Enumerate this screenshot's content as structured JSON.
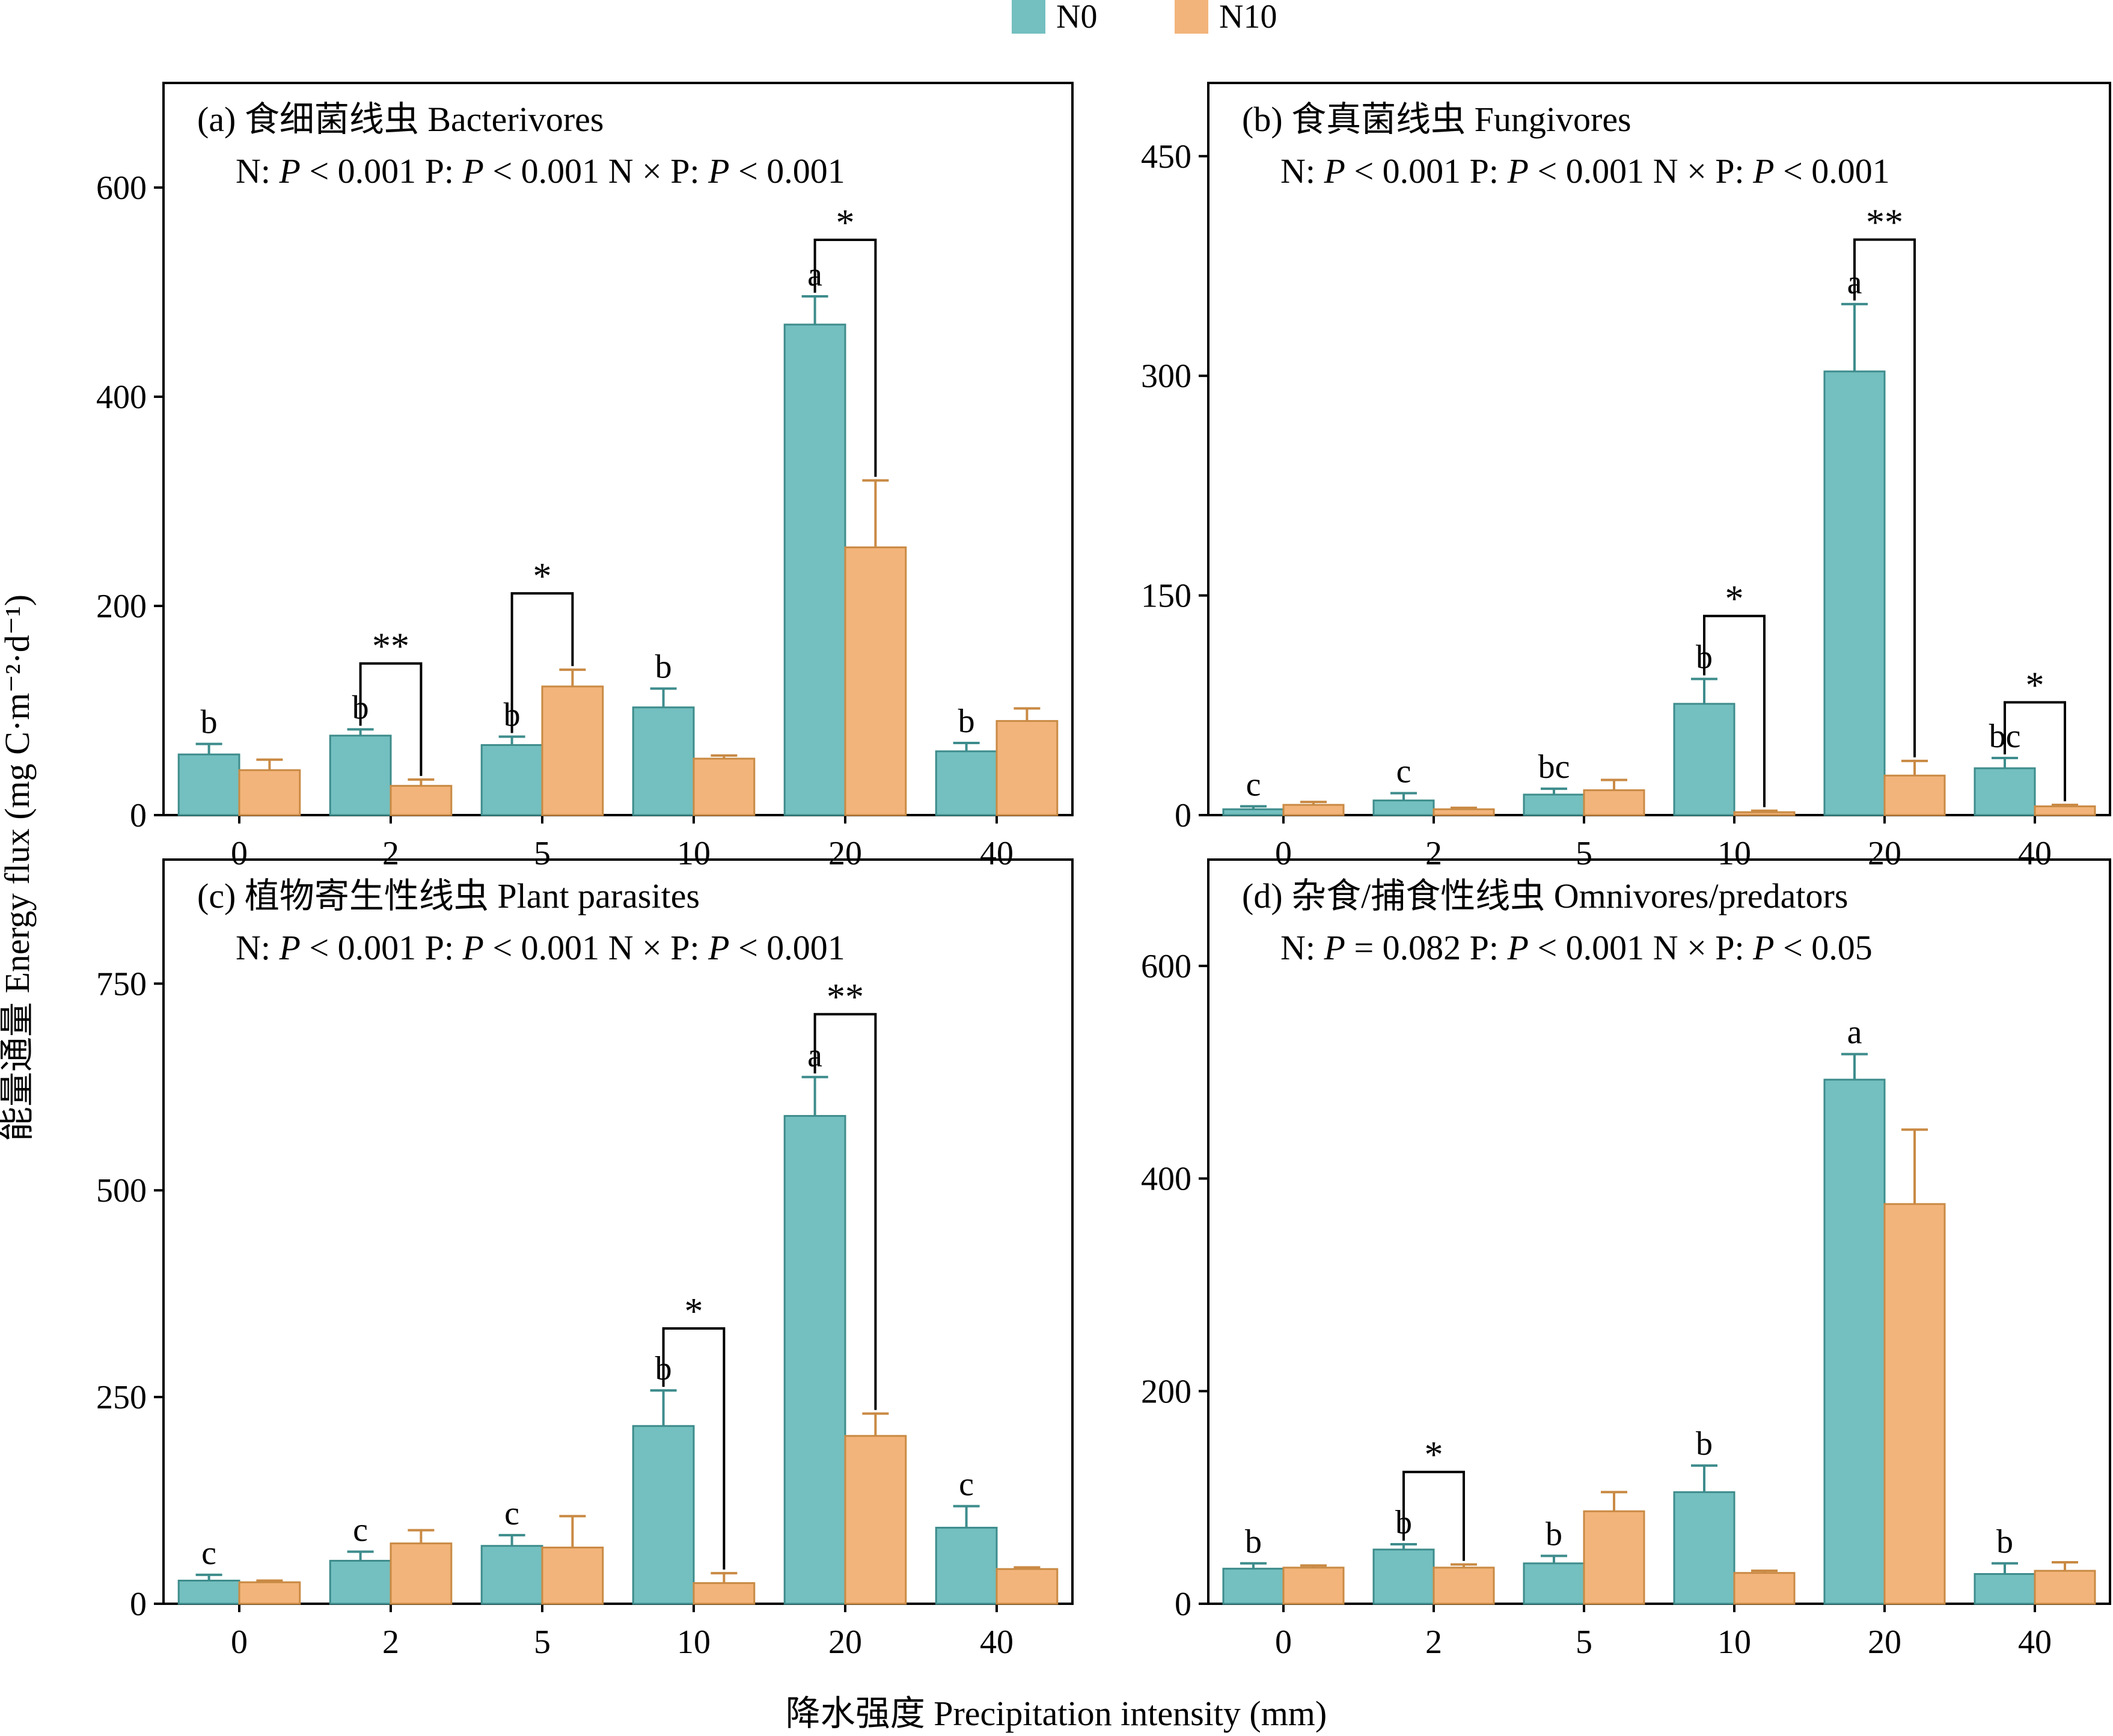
{
  "colors": {
    "N0": "#74BFBF",
    "N10": "#F2B47A",
    "N0_edge": "#3E8C8C",
    "N10_edge": "#C98A44"
  },
  "legend": {
    "N0": "N0",
    "N10": "N10"
  },
  "y_axis_label": "能量通量 Energy flux (mg C·m⁻²·d⁻¹)",
  "x_axis_label": "降水强度 Precipitation intensity (mm)",
  "chart_data": [
    {
      "type": "bar",
      "title": "(a) 食细菌线虫 Bacterivores",
      "stats": [
        {
          "pre": "N: ",
          "p": "P",
          "post": " < 0.001"
        },
        {
          "pre": "P: ",
          "p": "P",
          "post": " < 0.001"
        },
        {
          "pre": "N × P: ",
          "p": "P",
          "post": " < 0.001"
        }
      ],
      "categories": [
        "0",
        "2",
        "5",
        "10",
        "20",
        "40"
      ],
      "ylim": [
        0,
        700
      ],
      "yticks": [
        0,
        200,
        400,
        600
      ],
      "series": [
        {
          "name": "N0",
          "values": [
            58,
            76,
            67,
            103,
            469,
            61
          ],
          "errors": [
            10,
            6,
            8,
            18,
            27,
            8
          ]
        },
        {
          "name": "N10",
          "values": [
            43,
            28,
            123,
            54,
            256,
            90
          ],
          "errors": [
            10,
            6,
            16,
            3,
            64,
            12
          ]
        }
      ],
      "letters": [
        {
          "cat": 0,
          "series": 0,
          "text": "b"
        },
        {
          "cat": 1,
          "series": 0,
          "text": "b"
        },
        {
          "cat": 2,
          "series": 0,
          "text": "b"
        },
        {
          "cat": 3,
          "series": 0,
          "text": "b"
        },
        {
          "cat": 4,
          "series": 0,
          "text": "a"
        },
        {
          "cat": 5,
          "series": 0,
          "text": "b"
        }
      ],
      "sig": [
        {
          "cat": 1,
          "text": "**",
          "top": 145
        },
        {
          "cat": 2,
          "text": "*",
          "top": 212
        },
        {
          "cat": 4,
          "text": "*",
          "top": 550
        }
      ]
    },
    {
      "type": "bar",
      "title": "(b) 食真菌线虫 Fungivores",
      "stats": [
        {
          "pre": "N: ",
          "p": "P",
          "post": " < 0.001"
        },
        {
          "pre": "P: ",
          "p": "P",
          "post": " < 0.001"
        },
        {
          "pre": "N × P: ",
          "p": "P",
          "post": " < 0.001"
        }
      ],
      "categories": [
        "0",
        "2",
        "5",
        "10",
        "20",
        "40"
      ],
      "ylim": [
        0,
        500
      ],
      "yticks": [
        0,
        150,
        300,
        450
      ],
      "series": [
        {
          "name": "N0",
          "values": [
            4,
            10,
            14,
            76,
            303,
            32
          ],
          "errors": [
            2,
            5,
            4,
            17,
            46,
            7
          ]
        },
        {
          "name": "N10",
          "values": [
            7,
            4,
            17,
            2,
            27,
            6
          ],
          "errors": [
            2,
            1,
            7,
            1,
            10,
            1
          ]
        }
      ],
      "letters": [
        {
          "cat": 0,
          "series": 0,
          "text": "c"
        },
        {
          "cat": 1,
          "series": 0,
          "text": "c"
        },
        {
          "cat": 2,
          "series": 0,
          "text": "bc"
        },
        {
          "cat": 3,
          "series": 0,
          "text": "b"
        },
        {
          "cat": 4,
          "series": 0,
          "text": "a"
        },
        {
          "cat": 5,
          "series": 0,
          "text": "bc"
        }
      ],
      "sig": [
        {
          "cat": 3,
          "text": "*",
          "top": 136
        },
        {
          "cat": 4,
          "text": "**",
          "top": 393
        },
        {
          "cat": 5,
          "text": "*",
          "top": 77
        }
      ]
    },
    {
      "type": "bar",
      "title": "(c) 植物寄生性线虫 Plant parasites",
      "stats": [
        {
          "pre": "N: ",
          "p": "P",
          "post": " < 0.001"
        },
        {
          "pre": "P: ",
          "p": "P",
          "post": " < 0.001"
        },
        {
          "pre": "N × P: ",
          "p": "P",
          "post": " < 0.001"
        }
      ],
      "categories": [
        "0",
        "2",
        "5",
        "10",
        "20",
        "40"
      ],
      "ylim": [
        0,
        900
      ],
      "yticks": [
        0,
        250,
        500,
        750
      ],
      "series": [
        {
          "name": "N0",
          "values": [
            28,
            52,
            70,
            215,
            590,
            92
          ],
          "errors": [
            7,
            11,
            13,
            43,
            47,
            26
          ]
        },
        {
          "name": "N10",
          "values": [
            26,
            73,
            68,
            25,
            203,
            42
          ],
          "errors": [
            2,
            16,
            38,
            12,
            27,
            2
          ]
        }
      ],
      "letters": [
        {
          "cat": 0,
          "series": 0,
          "text": "c"
        },
        {
          "cat": 1,
          "series": 0,
          "text": "c"
        },
        {
          "cat": 2,
          "series": 0,
          "text": "c"
        },
        {
          "cat": 3,
          "series": 0,
          "text": "b"
        },
        {
          "cat": 4,
          "series": 0,
          "text": "a"
        },
        {
          "cat": 5,
          "series": 0,
          "text": "c"
        }
      ],
      "sig": [
        {
          "cat": 3,
          "text": "*",
          "top": 333
        },
        {
          "cat": 4,
          "text": "**",
          "top": 713
        }
      ]
    },
    {
      "type": "bar",
      "title": "(d) 杂食/捕食性线虫 Omnivores/predators",
      "stats": [
        {
          "pre": "N: ",
          "p": "P",
          "post": " = 0.082"
        },
        {
          "pre": "P: ",
          "p": "P",
          "post": " < 0.001"
        },
        {
          "pre": "N × P: ",
          "p": "P",
          "post": " < 0.05"
        }
      ],
      "categories": [
        "0",
        "2",
        "5",
        "10",
        "20",
        "40"
      ],
      "ylim": [
        0,
        700
      ],
      "yticks": [
        0,
        200,
        400,
        600
      ],
      "series": [
        {
          "name": "N0",
          "values": [
            33,
            51,
            38,
            105,
            493,
            28
          ],
          "errors": [
            5,
            5,
            7,
            25,
            24,
            10
          ]
        },
        {
          "name": "N10",
          "values": [
            34,
            34,
            87,
            29,
            376,
            31
          ],
          "errors": [
            2,
            3,
            18,
            2,
            70,
            8
          ]
        }
      ],
      "letters": [
        {
          "cat": 0,
          "series": 0,
          "text": "b"
        },
        {
          "cat": 1,
          "series": 0,
          "text": "b"
        },
        {
          "cat": 2,
          "series": 0,
          "text": "b"
        },
        {
          "cat": 3,
          "series": 0,
          "text": "b"
        },
        {
          "cat": 4,
          "series": 0,
          "text": "a"
        },
        {
          "cat": 5,
          "series": 0,
          "text": "b"
        }
      ],
      "sig": [
        {
          "cat": 1,
          "text": "*",
          "top": 124
        }
      ]
    }
  ]
}
